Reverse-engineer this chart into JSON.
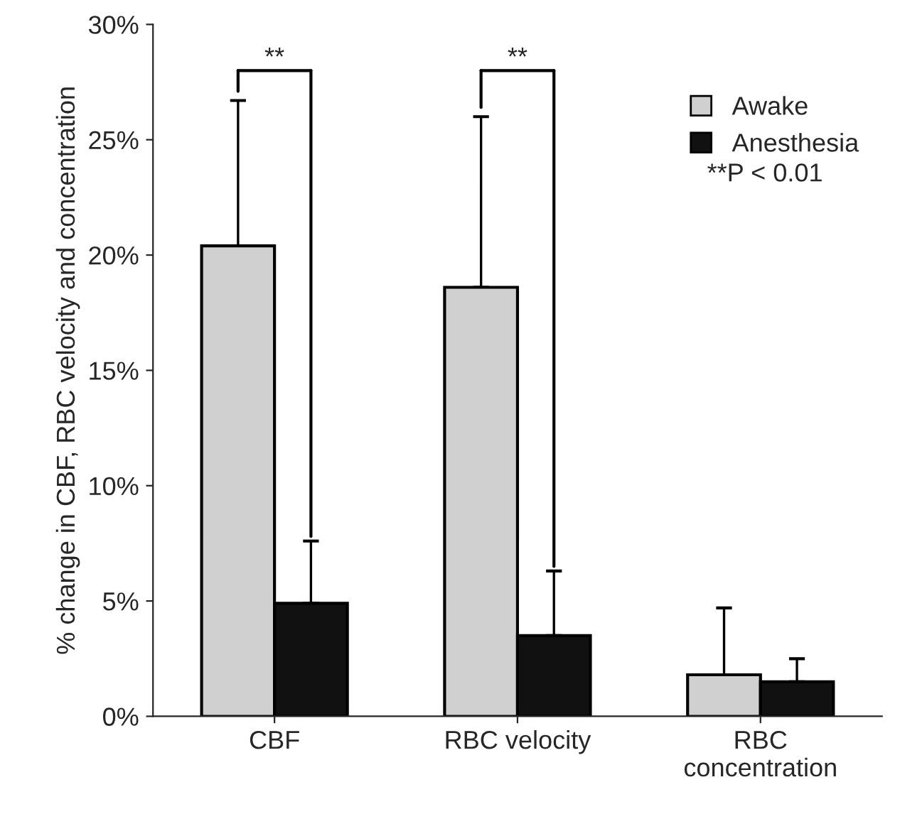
{
  "chart_data": {
    "type": "bar",
    "ylabel": "% change in CBF, RBC velocity and concentration",
    "categories": [
      "CBF",
      "RBC velocity",
      "RBC\nconcentration"
    ],
    "series": [
      {
        "name": "Awake",
        "color": "#d0d0d0",
        "values": [
          20.4,
          18.6,
          1.8
        ],
        "errors": [
          [
            20.4,
            26.7
          ],
          [
            18.6,
            26.0
          ],
          [
            1.8,
            4.7
          ]
        ]
      },
      {
        "name": "Anesthesia",
        "color": "#111111",
        "values": [
          4.9,
          3.5,
          1.5
        ],
        "errors": [
          [
            4.9,
            7.6
          ],
          [
            3.5,
            6.3
          ],
          [
            1.5,
            2.5
          ]
        ]
      }
    ],
    "ylim": [
      0,
      30
    ],
    "yticks": [
      {
        "value": 0,
        "label": "0%"
      },
      {
        "value": 5,
        "label": "5%"
      },
      {
        "value": 10,
        "label": "10%"
      },
      {
        "value": 15,
        "label": "15%"
      },
      {
        "value": 20,
        "label": "20%"
      },
      {
        "value": 25,
        "label": "25%"
      },
      {
        "value": 30,
        "label": "30%"
      }
    ],
    "annotations": [
      "**",
      "**",
      "**P < 0.01"
    ],
    "legend": "top right",
    "grid": false
  }
}
